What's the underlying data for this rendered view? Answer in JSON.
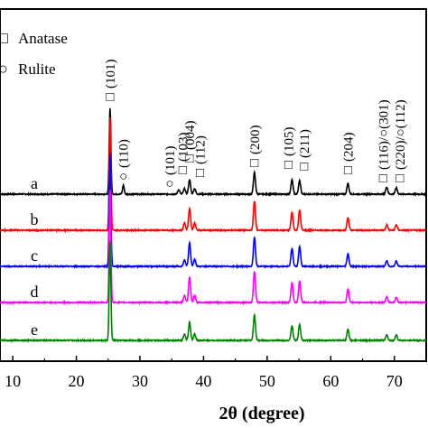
{
  "chart_data": {
    "type": "line",
    "title": "",
    "xlabel": "2θ (degree)",
    "ylabel": "",
    "xlim": [
      8,
      75
    ],
    "x_ticks": [
      "10",
      "20",
      "30",
      "40",
      "50",
      "60",
      "70"
    ],
    "grid": false,
    "legend_position": "top-left",
    "legend": [
      {
        "symbol": "□",
        "label": "Anatase"
      },
      {
        "symbol": "○",
        "label": "Rulite"
      }
    ],
    "baseline_noise": 0.6,
    "series": [
      {
        "name": "a",
        "color": "#000000",
        "baseline": 0.0,
        "scale": 1.0,
        "peaks": [
          [
            25.3,
            95
          ],
          [
            27.4,
            10
          ],
          [
            36.1,
            5
          ],
          [
            37.0,
            6
          ],
          [
            37.8,
            16
          ],
          [
            38.6,
            6
          ],
          [
            48.0,
            24
          ],
          [
            53.9,
            16
          ],
          [
            55.1,
            15
          ],
          [
            62.7,
            12
          ],
          [
            68.8,
            8
          ],
          [
            70.3,
            7
          ]
        ]
      },
      {
        "name": "b",
        "color": "#ff0000",
        "baseline": -40.0,
        "scale": 1.0,
        "peaks": [
          [
            25.3,
            125
          ],
          [
            37.0,
            8
          ],
          [
            37.8,
            24
          ],
          [
            38.6,
            8
          ],
          [
            48.0,
            32
          ],
          [
            53.9,
            20
          ],
          [
            55.1,
            22
          ],
          [
            62.7,
            14
          ],
          [
            68.8,
            6
          ],
          [
            70.3,
            6
          ]
        ]
      },
      {
        "name": "c",
        "color": "#0000ff",
        "baseline": -80.0,
        "scale": 1.0,
        "peaks": [
          [
            25.3,
            125
          ],
          [
            37.0,
            7
          ],
          [
            37.8,
            26
          ],
          [
            38.6,
            8
          ],
          [
            48.0,
            32
          ],
          [
            53.9,
            20
          ],
          [
            55.1,
            22
          ],
          [
            62.7,
            14
          ],
          [
            68.8,
            6
          ],
          [
            70.3,
            6
          ]
        ]
      },
      {
        "name": "d",
        "color": "#ff00ff",
        "baseline": -120.0,
        "scale": 1.0,
        "peaks": [
          [
            25.3,
            125
          ],
          [
            37.0,
            8
          ],
          [
            37.8,
            28
          ],
          [
            38.6,
            8
          ],
          [
            48.0,
            34
          ],
          [
            53.9,
            22
          ],
          [
            55.1,
            24
          ],
          [
            62.7,
            15
          ],
          [
            68.8,
            6
          ],
          [
            70.3,
            6
          ]
        ]
      },
      {
        "name": "e",
        "color": "#008000",
        "baseline": -162.0,
        "scale": 1.0,
        "peaks": [
          [
            25.3,
            110
          ],
          [
            37.0,
            7
          ],
          [
            37.8,
            20
          ],
          [
            38.6,
            7
          ],
          [
            48.0,
            28
          ],
          [
            53.9,
            16
          ],
          [
            55.1,
            18
          ],
          [
            62.7,
            12
          ],
          [
            68.8,
            6
          ],
          [
            70.3,
            6
          ]
        ]
      }
    ],
    "annotations": [
      {
        "x": 25.3,
        "symbol": "□",
        "label": "(101)"
      },
      {
        "x": 27.4,
        "symbol": "○",
        "label": "(110)"
      },
      {
        "x": 36.1,
        "symbol": "○",
        "label": "(101)"
      },
      {
        "x": 37.0,
        "symbol": "□",
        "label": "(103)"
      },
      {
        "x": 37.8,
        "symbol": "□",
        "label": "(004)"
      },
      {
        "x": 38.6,
        "symbol": "□",
        "label": "(112)"
      },
      {
        "x": 48.0,
        "symbol": "□",
        "label": "(200)"
      },
      {
        "x": 53.9,
        "symbol": "□",
        "label": "(105)"
      },
      {
        "x": 55.1,
        "symbol": "□",
        "label": "(211)"
      },
      {
        "x": 62.7,
        "symbol": "□",
        "label": "(204)"
      },
      {
        "x": 68.8,
        "symbol": "□",
        "label": "(116)/○(301)"
      },
      {
        "x": 70.3,
        "symbol": "□",
        "label": "(220)/○(112)"
      }
    ]
  }
}
